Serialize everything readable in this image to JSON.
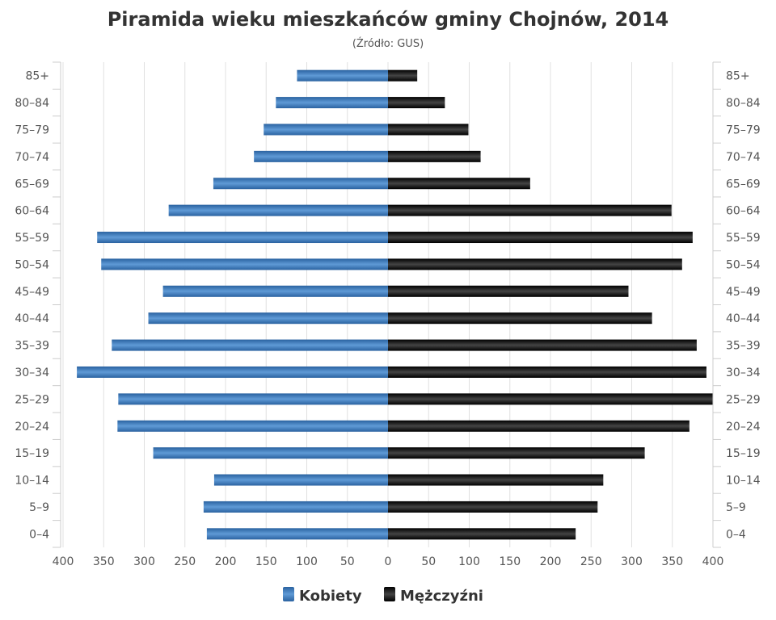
{
  "chart_data": {
    "type": "bar",
    "orientation": "horizontal-population-pyramid",
    "title": "Piramida wieku mieszkańców gminy Chojnów, 2014",
    "subtitle": "(Źródło: GUS)",
    "categories": [
      "85+",
      "80–84",
      "75–79",
      "70–74",
      "65–69",
      "60–64",
      "55–59",
      "50–54",
      "45–49",
      "40–44",
      "35–39",
      "30–34",
      "25–29",
      "20–24",
      "15–19",
      "10–14",
      "5–9",
      "0–4"
    ],
    "series": [
      {
        "name": "Kobiety",
        "color": "#3a78b8",
        "values": [
          112,
          138,
          153,
          165,
          215,
          270,
          358,
          353,
          277,
          295,
          340,
          383,
          332,
          333,
          289,
          214,
          227,
          223
        ]
      },
      {
        "name": "Mężczyźni",
        "color": "#1a1a1a",
        "values": [
          36,
          70,
          99,
          114,
          175,
          349,
          375,
          362,
          296,
          325,
          380,
          392,
          400,
          371,
          316,
          265,
          258,
          231
        ]
      }
    ],
    "xlim": [
      -400,
      400
    ],
    "xticks": [
      400,
      350,
      300,
      250,
      200,
      150,
      100,
      50,
      0,
      50,
      100,
      150,
      200,
      250,
      300,
      350,
      400
    ],
    "grid": true,
    "legend": "bottom"
  }
}
